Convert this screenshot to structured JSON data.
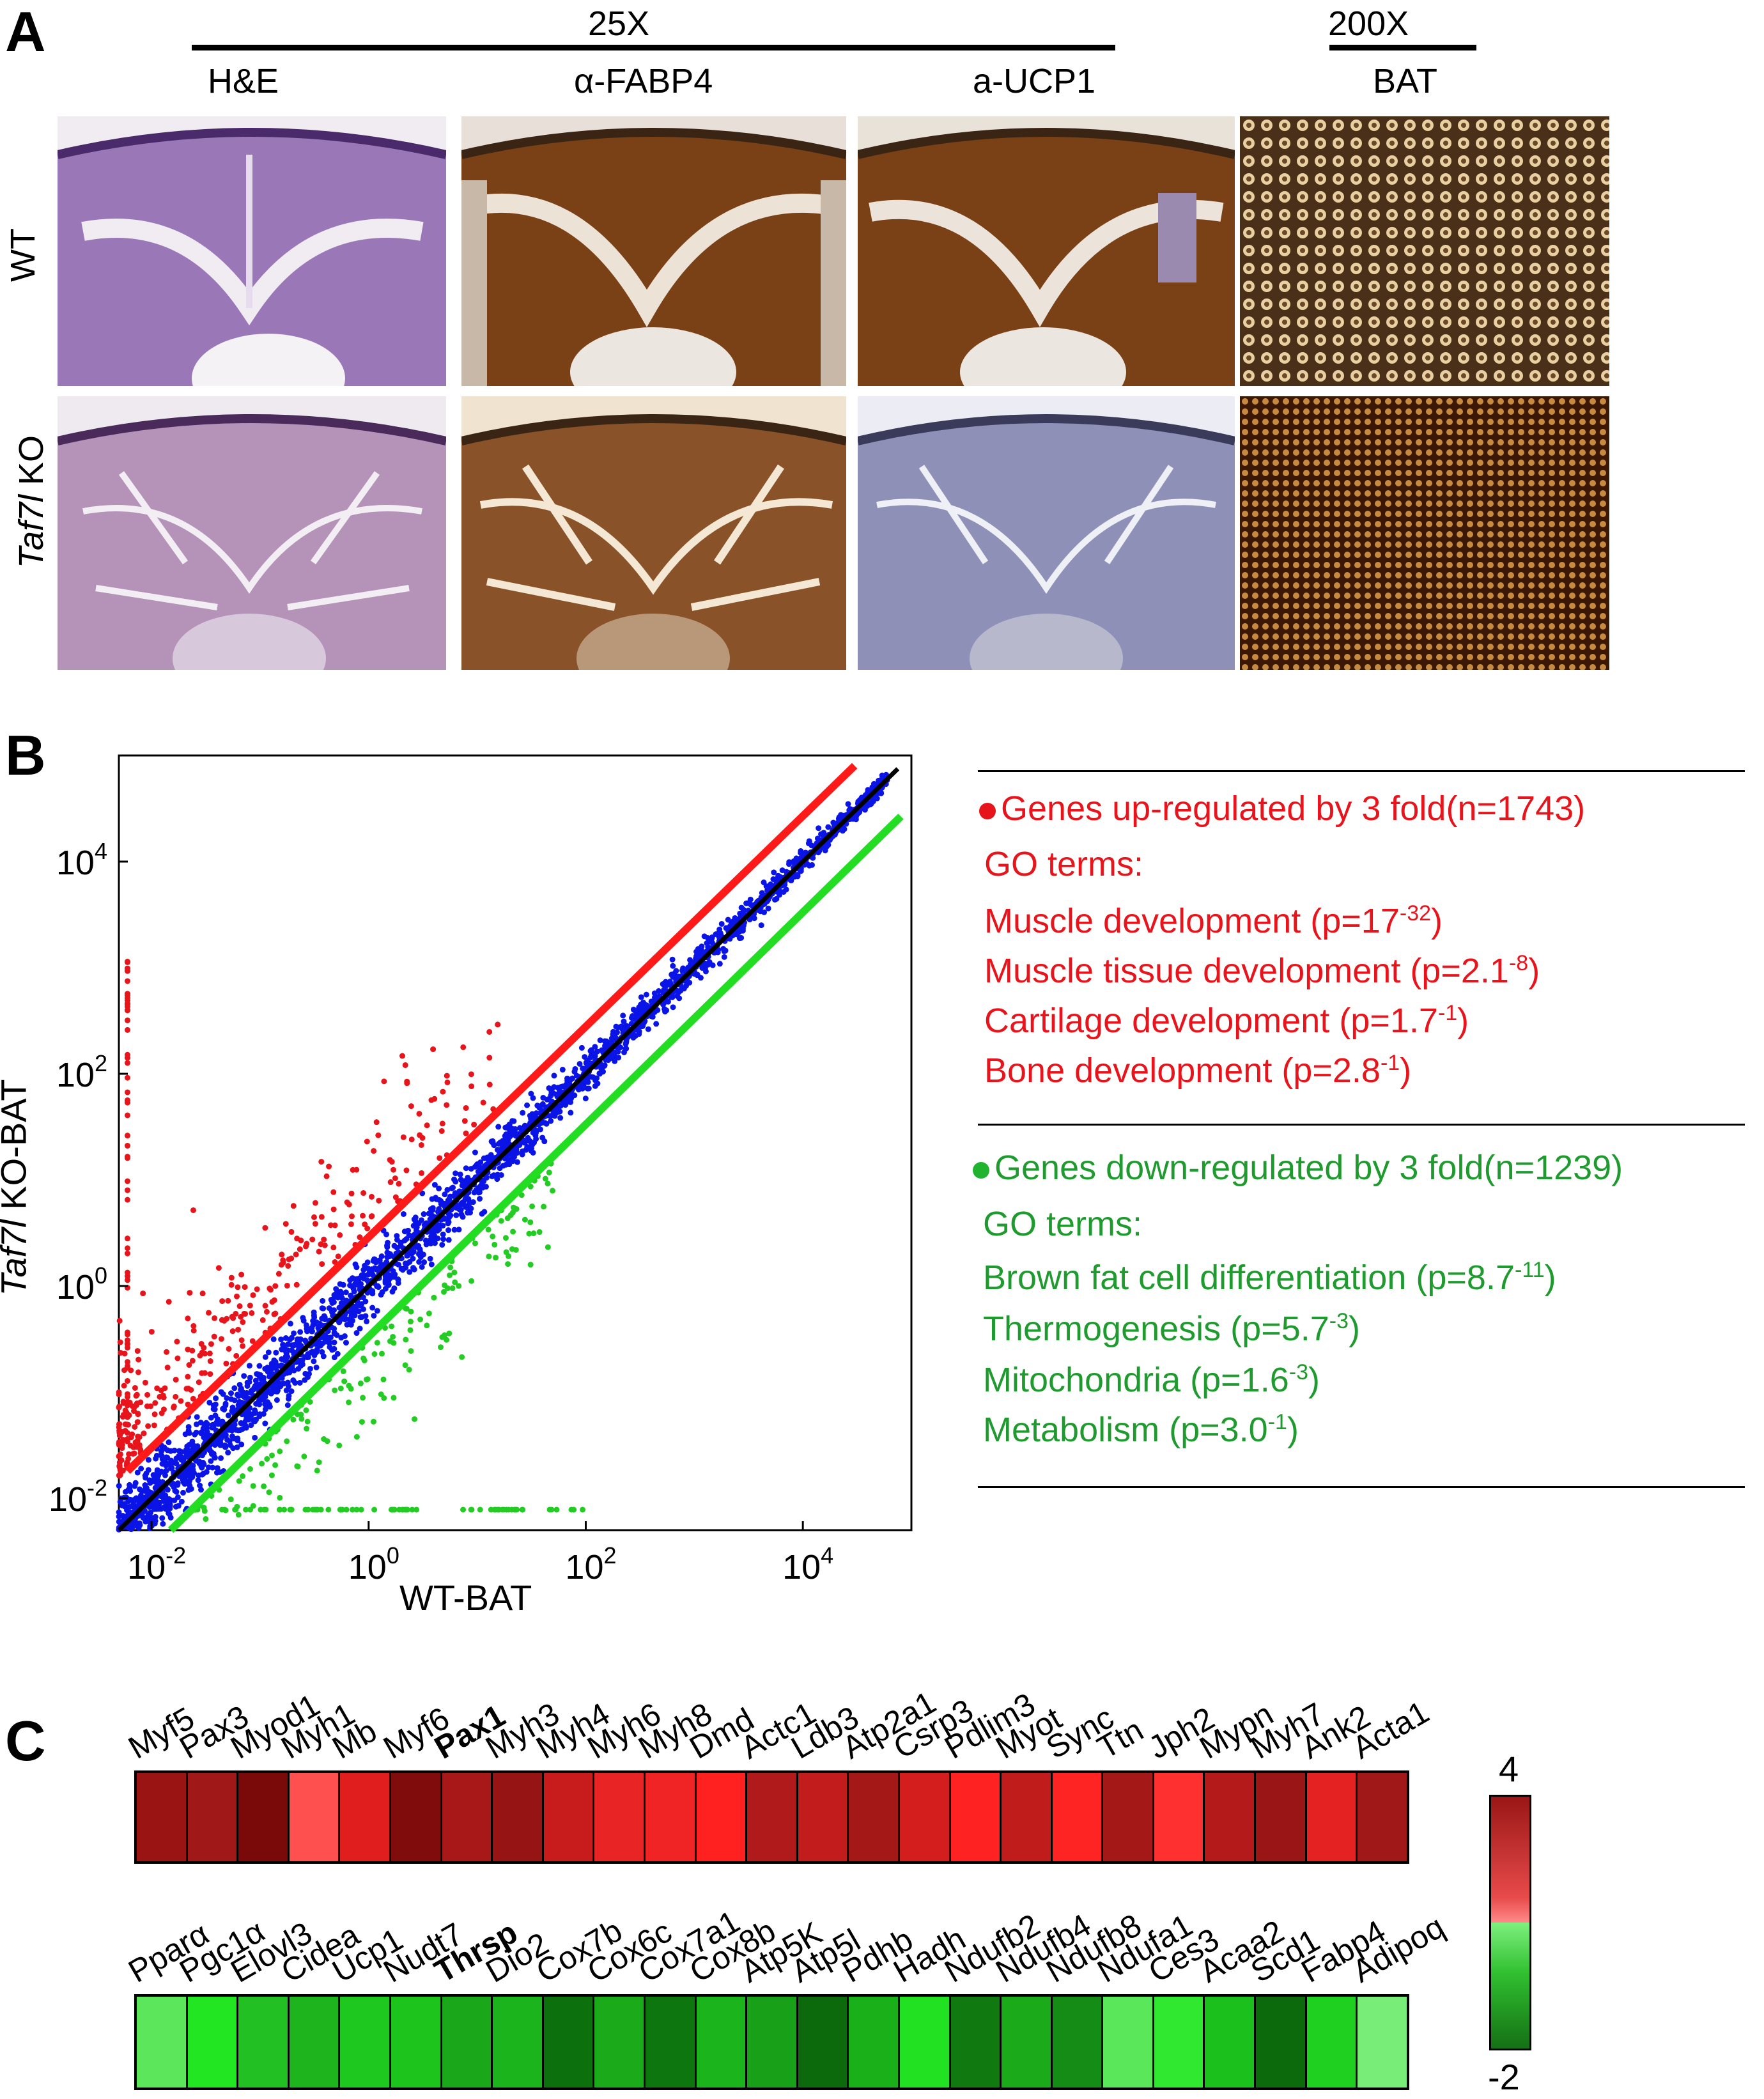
{
  "panel_a": {
    "letter": "A",
    "magnification_low": "25X",
    "magnification_high": "200X",
    "columns": [
      "H&E",
      "α-FABP4",
      "a-UCP1",
      "BAT"
    ],
    "rows": [
      {
        "label_pre": "",
        "label_italic": "",
        "label_plain": "WT"
      },
      {
        "label_pre": "",
        "label_italic": "Taf7l",
        "label_plain": " KO"
      }
    ],
    "colors": {
      "he_wt": "#9a78b8",
      "fabp4_wt": "#7a4016",
      "ucp1_wt": "#7a4016",
      "bat_wt": "#a87a48",
      "he_ko": "#b592b8",
      "fabp4_ko": "#8a5228",
      "ucp1_ko": "#8f90b8",
      "bat_ko": "#5a2c0c"
    }
  },
  "panel_b": {
    "letter": "B",
    "chart_data": {
      "type": "scatter",
      "xlabel": "WT-BAT",
      "ylabel_italic": "Taf7l",
      "ylabel_plain": " KO-BAT",
      "x_scale": "log",
      "y_scale": "log",
      "xlim": [
        0.005,
        100000
      ],
      "ylim": [
        0.005,
        100000
      ],
      "x_ticks": [
        {
          "base": "10",
          "exp": "-2"
        },
        {
          "base": "10",
          "exp": "0"
        },
        {
          "base": "10",
          "exp": "2"
        },
        {
          "base": "10",
          "exp": "4"
        }
      ],
      "y_ticks": [
        {
          "base": "10",
          "exp": "-2"
        },
        {
          "base": "10",
          "exp": "0"
        },
        {
          "base": "10",
          "exp": "2"
        },
        {
          "base": "10",
          "exp": "4"
        }
      ],
      "x_tick_values": [
        0.01,
        1,
        100,
        10000
      ],
      "y_tick_values": [
        0.01,
        1,
        100,
        10000
      ],
      "lines": [
        {
          "color": "#ff1a1a",
          "fold": 3
        },
        {
          "color": "#000000",
          "fold": 1
        },
        {
          "color": "#22dd22",
          "fold": 0.333
        }
      ],
      "series": [
        {
          "color": "#0a14e6",
          "class": "unchanged"
        },
        {
          "color": "#e8141c",
          "class": "up"
        },
        {
          "color": "#22cc22",
          "class": "down"
        }
      ]
    },
    "up": {
      "title": "Genes up-regulated by 3 fold(n=1743)",
      "go": "GO terms:",
      "terms": [
        {
          "text": "Muscle development (p=17",
          "exp": "-32",
          "end": ")"
        },
        {
          "text": "Muscle tissue development (p=2.1",
          "exp": "-8",
          "end": ")"
        },
        {
          "text": "Cartilage development (p=1.7",
          "exp": "-1",
          "end": ")"
        },
        {
          "text": "Bone development (p=2.8",
          "exp": "-1",
          "end": ")"
        }
      ]
    },
    "down": {
      "title": "Genes down-regulated by 3 fold(n=1239)",
      "go": "GO terms:",
      "terms": [
        {
          "text": "Brown fat cell differentiation (p=8.7",
          "exp": "-11",
          "end": ")"
        },
        {
          "text": "Thermogenesis (p=5.7",
          "exp": "-3",
          "end": ")"
        },
        {
          "text": "Mitochondria (p=1.6",
          "exp": "-3",
          "end": ")"
        },
        {
          "text": "Metabolism (p=3.0",
          "exp": "-1",
          "end": ")"
        }
      ]
    }
  },
  "panel_c": {
    "letter": "C",
    "scale_max": "4",
    "scale_min": "-2",
    "up_genes": [
      {
        "name": "Myf5",
        "color": "#9a1414"
      },
      {
        "name": "Pax3",
        "color": "#a01818"
      },
      {
        "name": "Myod1",
        "color": "#7a0a0a"
      },
      {
        "name": "Myh1",
        "color": "#ff5050"
      },
      {
        "name": "Mb",
        "color": "#e01e1e"
      },
      {
        "name": "Myf6",
        "color": "#800c0c"
      },
      {
        "name": "Pax1",
        "color": "#a81818",
        "bold": true
      },
      {
        "name": "Myh3",
        "color": "#961414"
      },
      {
        "name": "Myh4",
        "color": "#c81c1c"
      },
      {
        "name": "Myh6",
        "color": "#e82424"
      },
      {
        "name": "Myh8",
        "color": "#f02424"
      },
      {
        "name": "Dmd",
        "color": "#ff2020"
      },
      {
        "name": "Actc1",
        "color": "#b01a1a"
      },
      {
        "name": "Ldb3",
        "color": "#c21c1c"
      },
      {
        "name": "Atp2a1",
        "color": "#a41818"
      },
      {
        "name": "Csrp3",
        "color": "#d41e1e"
      },
      {
        "name": "Pdlim3",
        "color": "#ff2222"
      },
      {
        "name": "Myot",
        "color": "#c01c1c"
      },
      {
        "name": "Sync",
        "color": "#ff2424"
      },
      {
        "name": "Ttn",
        "color": "#a41818"
      },
      {
        "name": "Jph2",
        "color": "#ff3030"
      },
      {
        "name": "Mypn",
        "color": "#b41a1a"
      },
      {
        "name": "Myh7",
        "color": "#9a1616"
      },
      {
        "name": "Ank2",
        "color": "#e42222"
      },
      {
        "name": "Acta1",
        "color": "#a01818"
      }
    ],
    "down_genes": [
      {
        "name": "Pparα",
        "color": "#5be65b"
      },
      {
        "name": "Pgc1α",
        "color": "#22e622"
      },
      {
        "name": "Elovl3",
        "color": "#22c022"
      },
      {
        "name": "Cidea",
        "color": "#1eb41e"
      },
      {
        "name": "Ucp1",
        "color": "#1ec81e"
      },
      {
        "name": "Nudt7",
        "color": "#1cc41c"
      },
      {
        "name": "Thrsp",
        "color": "#1aa81a",
        "bold": true
      },
      {
        "name": "Dio2",
        "color": "#1cb41c"
      },
      {
        "name": "Cox7b",
        "color": "#0c700c"
      },
      {
        "name": "Cox6c",
        "color": "#1aaa1a"
      },
      {
        "name": "Cox7a1",
        "color": "#0e760e"
      },
      {
        "name": "Cox8b",
        "color": "#1cb41c"
      },
      {
        "name": "Atp5K",
        "color": "#18a018"
      },
      {
        "name": "Atp5l",
        "color": "#0c6a0c"
      },
      {
        "name": "Pdhb",
        "color": "#1ab01a"
      },
      {
        "name": "Hadh",
        "color": "#22e022"
      },
      {
        "name": "Ndufb2",
        "color": "#107a10"
      },
      {
        "name": "Ndufb4",
        "color": "#1aaa1a"
      },
      {
        "name": "Ndufb8",
        "color": "#158c15"
      },
      {
        "name": "Ndufa1",
        "color": "#5ae85a"
      },
      {
        "name": "Ces3",
        "color": "#30e830"
      },
      {
        "name": "Acaa2",
        "color": "#1cc01c"
      },
      {
        "name": "Scd1",
        "color": "#0c6a0c"
      },
      {
        "name": "Fabp4",
        "color": "#20d020"
      },
      {
        "name": "Adipoq",
        "color": "#78ee78"
      }
    ]
  }
}
